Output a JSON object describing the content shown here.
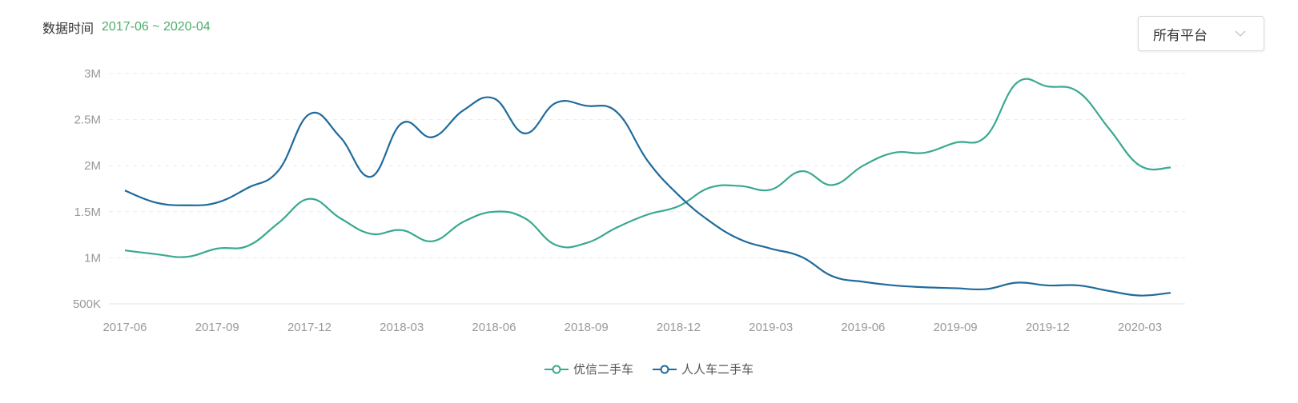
{
  "header": {
    "label": "数据时间",
    "range": "2017-06 ~ 2020-04"
  },
  "platform_select": {
    "value": "所有平台",
    "icon": "chevron-down-icon"
  },
  "legend": [
    {
      "label": "优信二手车",
      "color": "#3aa991",
      "icon": "line-circle-marker-icon"
    },
    {
      "label": "人人车二手车",
      "color": "#1f6b9c",
      "icon": "line-circle-marker-icon"
    }
  ],
  "chart_data": {
    "type": "line",
    "title": "",
    "xlabel": "",
    "ylabel": "",
    "ylim": [
      500000,
      3000000
    ],
    "y_ticks": [
      "500K",
      "1M",
      "1.5M",
      "2M",
      "2.5M",
      "3M"
    ],
    "x_ticks": [
      "2017-06",
      "2017-09",
      "2017-12",
      "2018-03",
      "2018-06",
      "2018-09",
      "2018-12",
      "2019-03",
      "2019-06",
      "2019-09",
      "2019-12",
      "2020-03"
    ],
    "grid": "horizontal dashed",
    "legend_position": "bottom",
    "smooth": true,
    "x": [
      "2017-06",
      "2017-07",
      "2017-08",
      "2017-09",
      "2017-10",
      "2017-11",
      "2017-12",
      "2018-01",
      "2018-02",
      "2018-03",
      "2018-04",
      "2018-05",
      "2018-06",
      "2018-07",
      "2018-08",
      "2018-09",
      "2018-10",
      "2018-11",
      "2018-12",
      "2019-01",
      "2019-02",
      "2019-03",
      "2019-04",
      "2019-05",
      "2019-06",
      "2019-07",
      "2019-08",
      "2019-09",
      "2019-10",
      "2019-11",
      "2019-12",
      "2020-01",
      "2020-02",
      "2020-03",
      "2020-04"
    ],
    "series": [
      {
        "name": "优信二手车",
        "color": "#3aa991",
        "values": [
          1080000,
          1040000,
          1010000,
          1100000,
          1130000,
          1380000,
          1640000,
          1430000,
          1260000,
          1300000,
          1180000,
          1390000,
          1500000,
          1430000,
          1140000,
          1160000,
          1330000,
          1470000,
          1560000,
          1760000,
          1780000,
          1740000,
          1940000,
          1790000,
          2000000,
          2140000,
          2140000,
          2250000,
          2320000,
          2900000,
          2860000,
          2800000,
          2400000,
          2000000,
          1980000
        ]
      },
      {
        "name": "人人车二手车",
        "color": "#1f6b9c",
        "values": [
          1730000,
          1600000,
          1570000,
          1600000,
          1760000,
          1950000,
          2560000,
          2310000,
          1880000,
          2460000,
          2310000,
          2600000,
          2730000,
          2350000,
          2680000,
          2650000,
          2580000,
          2050000,
          1680000,
          1400000,
          1200000,
          1100000,
          1010000,
          800000,
          740000,
          700000,
          680000,
          670000,
          660000,
          730000,
          700000,
          700000,
          640000,
          590000,
          620000
        ]
      }
    ]
  }
}
